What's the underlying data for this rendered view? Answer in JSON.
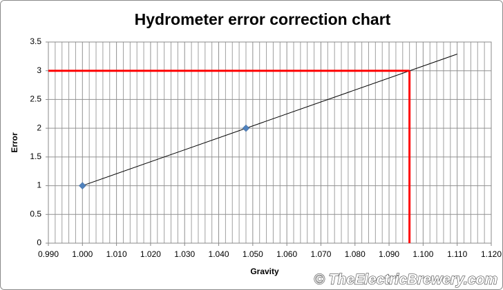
{
  "chart_data": {
    "type": "scatter",
    "title": "Hydrometer error correction chart",
    "x_label": "Gravity",
    "y_label": "Error",
    "series": [
      {
        "color": "#4f81bd",
        "x": [
          1.0,
          1.048
        ],
        "values": [
          1,
          2
        ]
      }
    ],
    "trendline": {
      "color": "#000000",
      "x": [
        1.0,
        1.11
      ],
      "values": [
        1,
        3.29
      ]
    },
    "reference": {
      "color": "#ff0000",
      "x": 1.096,
      "y": 3
    },
    "xlim": [
      0.99,
      1.12
    ],
    "xticks": [
      {
        "value": 0.99,
        "label": "0.990"
      },
      {
        "value": 1.0,
        "label": "1.000"
      },
      {
        "value": 1.01,
        "label": "1.010"
      },
      {
        "value": 1.02,
        "label": "1.020"
      },
      {
        "value": 1.03,
        "label": "1.030"
      },
      {
        "value": 1.04,
        "label": "1.040"
      },
      {
        "value": 1.05,
        "label": "1.050"
      },
      {
        "value": 1.06,
        "label": "1.060"
      },
      {
        "value": 1.07,
        "label": "1.070"
      },
      {
        "value": 1.08,
        "label": "1.080"
      },
      {
        "value": 1.09,
        "label": "1.090"
      },
      {
        "value": 1.1,
        "label": "1.100"
      },
      {
        "value": 1.11,
        "label": "1.110"
      },
      {
        "value": 1.12,
        "label": "1.120"
      }
    ],
    "xminorticks": [
      0.992,
      0.994,
      0.996,
      0.998,
      1.002,
      1.004,
      1.006,
      1.008,
      1.012,
      1.014,
      1.016,
      1.018,
      1.022,
      1.024,
      1.026,
      1.028,
      1.032,
      1.034,
      1.036,
      1.038,
      1.042,
      1.044,
      1.046,
      1.048,
      1.052,
      1.054,
      1.056,
      1.058,
      1.062,
      1.064,
      1.066,
      1.068,
      1.072,
      1.074,
      1.076,
      1.078,
      1.082,
      1.084,
      1.086,
      1.088,
      1.092,
      1.094,
      1.096,
      1.098,
      1.102,
      1.104,
      1.106,
      1.108,
      1.112,
      1.114,
      1.116,
      1.118
    ],
    "ylim": [
      0,
      3.5
    ],
    "yticks": [
      0,
      0.5,
      1,
      1.5,
      2,
      2.5,
      3,
      3.5
    ],
    "grid": true,
    "watermark": "© TheElectricBrewery.com"
  }
}
